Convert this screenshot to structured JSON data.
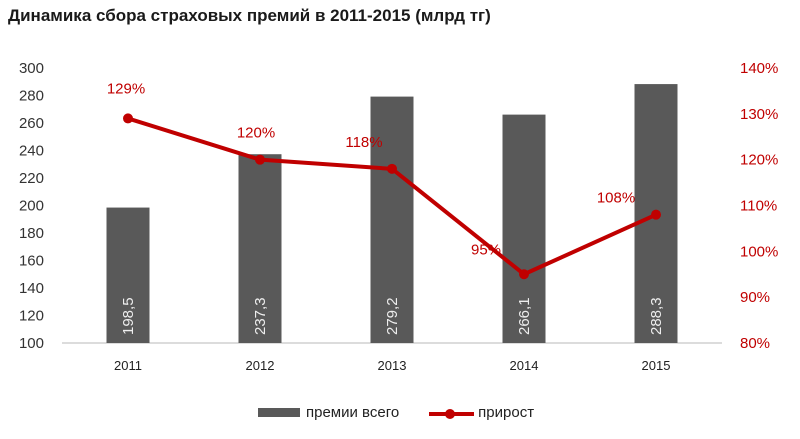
{
  "title": "Динамика сбора страховых премий в 2011-2015 (млрд тг)",
  "chart_data": {
    "type": "bar",
    "title": "Динамика сбора страховых премий в 2011-2015 (млрд тг)",
    "categories": [
      "2011",
      "2012",
      "2013",
      "2014",
      "2015"
    ],
    "series": [
      {
        "name": "премии всего",
        "type": "bar",
        "axis": "left",
        "color": "#595959",
        "values": [
          198.5,
          237.3,
          279.2,
          266.1,
          288.3
        ],
        "labels": [
          "198,5",
          "237,3",
          "279,2",
          "266,1",
          "288,3"
        ]
      },
      {
        "name": "прирост",
        "type": "line",
        "axis": "right",
        "color": "#c00000",
        "values": [
          129,
          120,
          118,
          95,
          108
        ],
        "labels": [
          "129%",
          "120%",
          "118%",
          "95%",
          "108%"
        ]
      }
    ],
    "y_left": {
      "ticks": [
        "300",
        "280",
        "260",
        "240",
        "220",
        "200",
        "180",
        "160",
        "140",
        "120",
        "100"
      ],
      "ylim": [
        100,
        300
      ]
    },
    "y_right": {
      "ticks": [
        "140%",
        "130%",
        "120%",
        "110%",
        "100%",
        "90%",
        "80%"
      ],
      "ylim": [
        80,
        140
      ]
    },
    "xlabel": "",
    "ylabel": "",
    "grid": false,
    "legend_position": "bottom"
  },
  "legend": {
    "items": [
      {
        "label": "премии всего"
      },
      {
        "label": "прирост"
      }
    ]
  }
}
